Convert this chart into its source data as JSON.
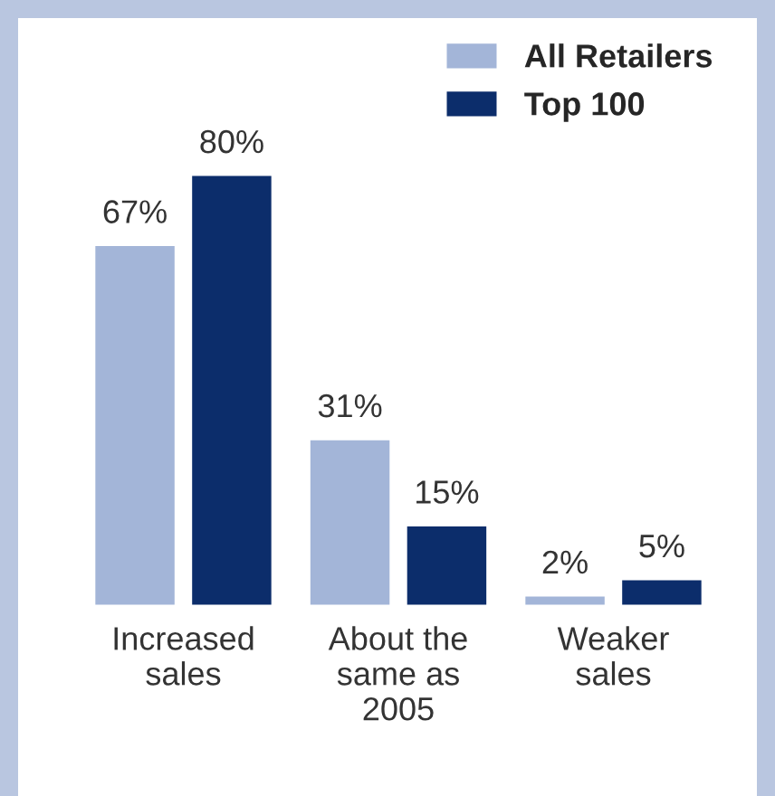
{
  "chart_data": {
    "type": "bar",
    "categories": [
      "Increased\nsales",
      "About the\nsame as\n2005",
      "Weaker\nsales"
    ],
    "series": [
      {
        "name": "All Retailers",
        "color": "#a3b5d8",
        "values": [
          67,
          31,
          2
        ],
        "value_labels": [
          "67%",
          "31%",
          "2%"
        ]
      },
      {
        "name": "Top 100",
        "color": "#0c2d6b",
        "values": [
          80,
          15,
          5
        ],
        "value_labels": [
          "80%",
          "15%",
          "5%"
        ]
      }
    ],
    "tick_labels": "x",
    "legend": "top right",
    "grid": false
  }
}
